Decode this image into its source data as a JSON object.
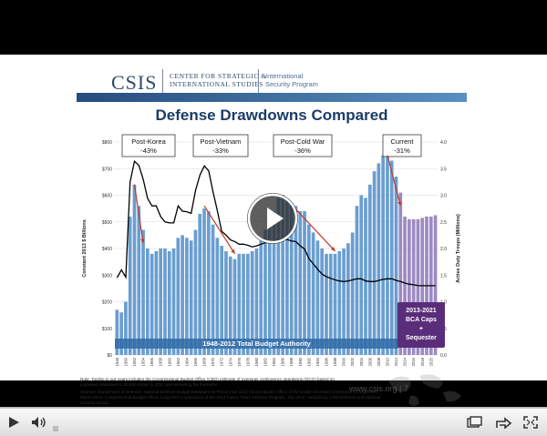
{
  "logo": {
    "brand": "CSIS",
    "center_line1": "CENTER FOR STRATEGIC &",
    "center_line2": "INTERNATIONAL STUDIES",
    "program_line1": "International",
    "program_line2": "Security Program"
  },
  "slide": {
    "title": "Defense Drawdowns Compared",
    "url": "www.csis.org",
    "page": "7",
    "note": "Note: Topline in out-years includes the Congressional Budget Office (CBO) estimate of overseas contingency operations (OCO) based on a phased drawdown to 30,000 troops in 2017 and remaining flat thereafter.",
    "sources": "Sources: Department of Defense, National Defense Budget Estimates for Fiscal Year 2013 (Green Book), Office of the Under Secretary of Defense (Comptroller), March 2012; Congressional Budget Office, Long-Term Implications of the 2013 Future Years Defense Program, July 2012; Analysis by CSIS Defense and National Security Group."
  },
  "chart_data": {
    "type": "bar",
    "ylabel_left": "Constant 2013 $ Billions",
    "ylabel_right": "Active Duty Troops (Millions)",
    "left_ticks": [
      "$0",
      "$100",
      "$200",
      "$300",
      "$400",
      "$500",
      "$600",
      "$700",
      "$800"
    ],
    "right_ticks": [
      "0.0",
      "0.5",
      "1.0",
      "1.5",
      "2.0",
      "2.5",
      "3.0",
      "3.5",
      "4.0"
    ],
    "ylim": [
      0,
      800
    ],
    "x_ticks": [
      "1948",
      "1950",
      "1952",
      "1954",
      "1956",
      "1958",
      "1960",
      "1962",
      "1964",
      "1966",
      "1968",
      "1970",
      "1972",
      "1974",
      "1976",
      "1978",
      "1980",
      "1982",
      "1984",
      "1986",
      "1988",
      "1990",
      "1992",
      "1994",
      "1996",
      "1998",
      "2000",
      "2002",
      "2004",
      "2006",
      "2008",
      "2010",
      "2012",
      "2014",
      "2016",
      "2018",
      "2020"
    ],
    "budget_label": "1948-2012 Total Budget Authority",
    "bca_label_line1": "2013-2021",
    "bca_label_line2": "BCA Caps",
    "bca_label_line3": "+",
    "bca_label_line4": "Sequester",
    "annotations": [
      {
        "label": "Post-Korea",
        "value": "-43%"
      },
      {
        "label": "Post-Vietnam",
        "value": "-33%"
      },
      {
        "label": "Post-Cold War",
        "value": "-36%"
      },
      {
        "label": "Current",
        "value": "-31%"
      }
    ],
    "series": [
      {
        "kind": "bar",
        "years": [
          1948,
          1949,
          1950,
          1951,
          1952,
          1953,
          1954,
          1955,
          1956,
          1957,
          1958,
          1959,
          1960,
          1961,
          1962,
          1963,
          1964,
          1965,
          1966,
          1967,
          1968,
          1969,
          1970,
          1971,
          1972,
          1973,
          1974,
          1975,
          1976,
          1977,
          1978,
          1979,
          1980,
          1981,
          1982,
          1983,
          1984,
          1985,
          1986,
          1987,
          1988,
          1989,
          1990,
          1991,
          1992,
          1993,
          1994,
          1995,
          1996,
          1997,
          1998,
          1999,
          2000,
          2001,
          2002,
          2003,
          2004,
          2005,
          2006,
          2007,
          2008,
          2009,
          2010,
          2011,
          2012,
          2013,
          2014,
          2015,
          2016,
          2017,
          2018,
          2019,
          2020,
          2021
        ],
        "values": [
          170,
          160,
          200,
          520,
          640,
          560,
          470,
          400,
          380,
          390,
          400,
          400,
          390,
          400,
          440,
          450,
          440,
          430,
          470,
          530,
          550,
          540,
          490,
          440,
          410,
          390,
          370,
          360,
          380,
          380,
          380,
          390,
          400,
          430,
          470,
          510,
          540,
          590,
          600,
          580,
          570,
          560,
          540,
          540,
          490,
          460,
          430,
          400,
          380,
          380,
          380,
          390,
          400,
          420,
          460,
          560,
          600,
          590,
          640,
          690,
          720,
          750,
          760,
          730,
          670,
          610,
          520,
          510,
          510,
          510,
          515,
          520,
          520,
          525
        ]
      },
      {
        "kind": "line",
        "name": "Active Duty Troops",
        "years": [
          1948,
          1949,
          1950,
          1951,
          1952,
          1953,
          1954,
          1955,
          1956,
          1957,
          1958,
          1959,
          1960,
          1961,
          1962,
          1963,
          1964,
          1965,
          1966,
          1967,
          1968,
          1969,
          1970,
          1971,
          1972,
          1973,
          1974,
          1975,
          1976,
          1977,
          1978,
          1979,
          1980,
          1981,
          1982,
          1983,
          1984,
          1985,
          1986,
          1987,
          1988,
          1989,
          1990,
          1991,
          1992,
          1993,
          1994,
          1995,
          1996,
          1997,
          1998,
          1999,
          2000,
          2001,
          2002,
          2003,
          2004,
          2005,
          2006,
          2007,
          2008,
          2009,
          2010,
          2011,
          2012,
          2013,
          2014,
          2015,
          2016,
          2017,
          2018,
          2019,
          2020,
          2021
        ],
        "values": [
          1.45,
          1.6,
          1.46,
          3.25,
          3.64,
          3.56,
          3.3,
          2.94,
          2.8,
          2.8,
          2.6,
          2.5,
          2.48,
          2.48,
          2.8,
          2.7,
          2.69,
          2.66,
          3.09,
          3.38,
          3.55,
          3.46,
          3.07,
          2.71,
          2.32,
          2.25,
          2.16,
          2.13,
          2.08,
          2.08,
          2.06,
          2.03,
          2.05,
          2.08,
          2.11,
          2.12,
          2.14,
          2.15,
          2.17,
          2.17,
          2.14,
          2.13,
          2.05,
          1.99,
          1.81,
          1.71,
          1.61,
          1.52,
          1.47,
          1.44,
          1.41,
          1.39,
          1.38,
          1.39,
          1.41,
          1.43,
          1.43,
          1.39,
          1.38,
          1.38,
          1.4,
          1.42,
          1.43,
          1.43,
          1.4,
          1.38,
          1.35,
          1.33,
          1.32,
          1.3,
          1.3,
          1.3,
          1.3,
          1.3
        ]
      }
    ]
  },
  "player": {
    "play_label": "Play",
    "volume_label": "Volume",
    "progress": 0.0,
    "watch_later_label": "Watch later",
    "share_label": "Share",
    "fullscreen_label": "Full screen"
  },
  "colors": {
    "bar": "#6a9ed0",
    "bar_future": "#9d8ac2",
    "line": "#000000",
    "arrow": "#c0392b",
    "budget_band": "#2f6aa6",
    "bca_band": "#5a2d7a"
  }
}
